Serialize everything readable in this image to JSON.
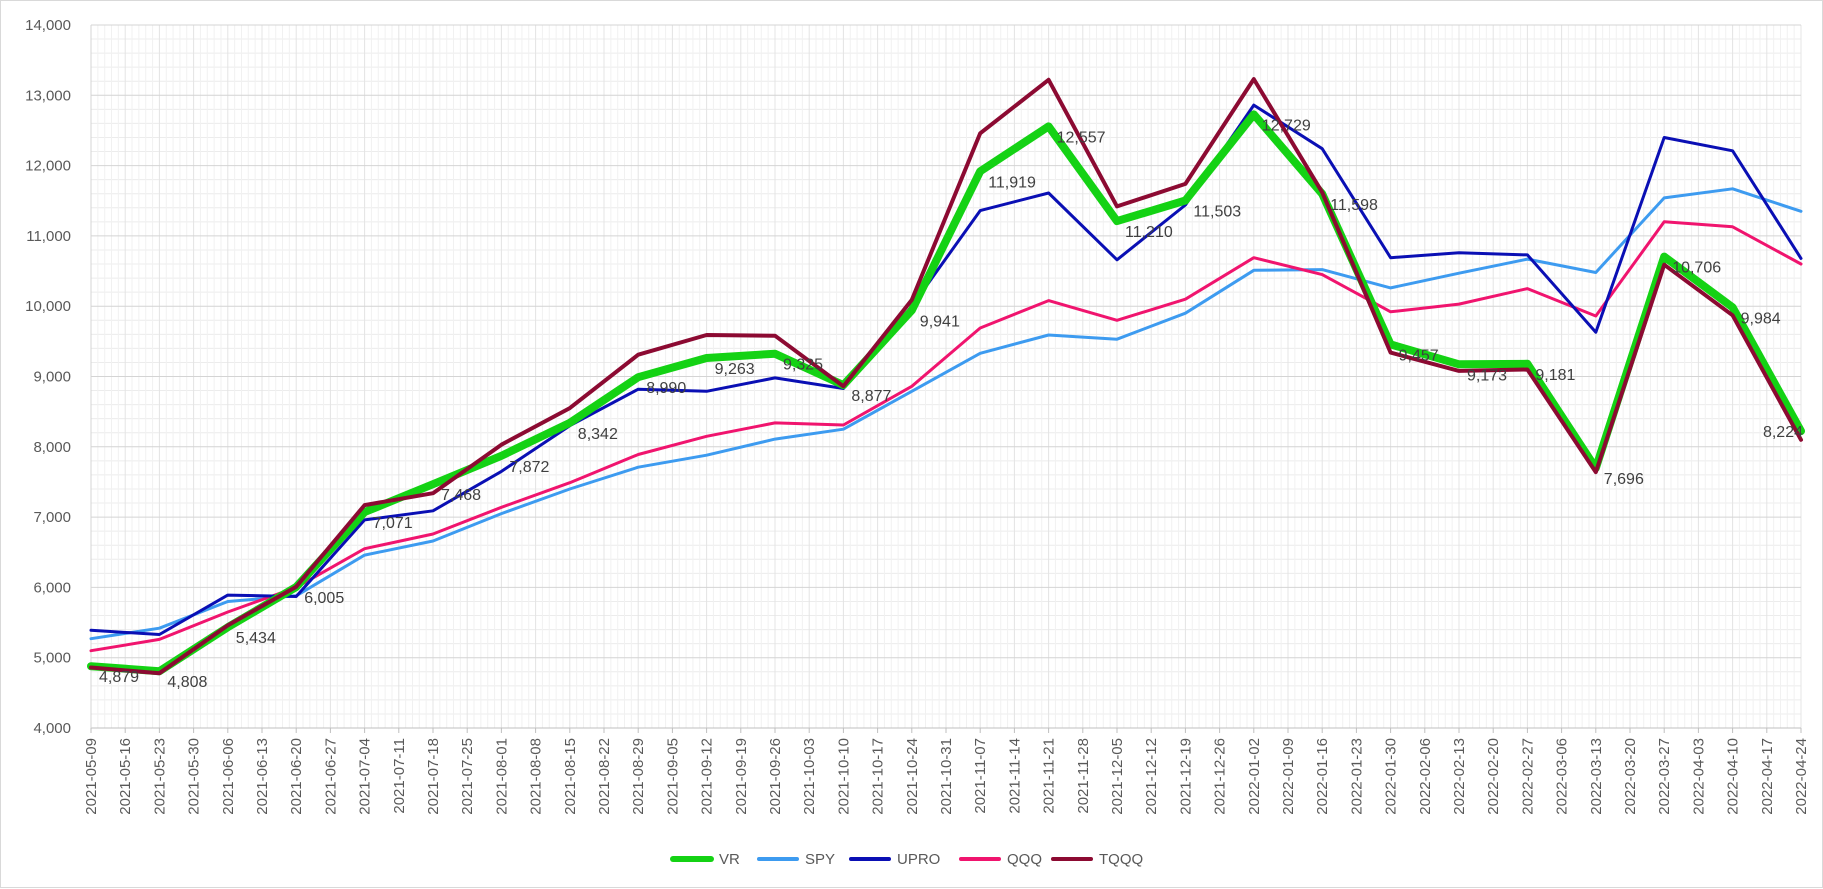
{
  "chart_data": {
    "type": "line",
    "title": "",
    "xlabel": "",
    "ylabel": "",
    "ylim": [
      4000,
      14000
    ],
    "yticks": [
      "4,000",
      "5,000",
      "6,000",
      "7,000",
      "8,000",
      "9,000",
      "10,000",
      "11,000",
      "12,000",
      "13,000",
      "14,000"
    ],
    "grid": true,
    "legend_position": "bottom",
    "categories": [
      "2021-05-09",
      "2021-05-16",
      "2021-05-23",
      "2021-05-30",
      "2021-06-06",
      "2021-06-13",
      "2021-06-20",
      "2021-06-27",
      "2021-07-04",
      "2021-07-11",
      "2021-07-18",
      "2021-07-25",
      "2021-08-01",
      "2021-08-08",
      "2021-08-15",
      "2021-08-22",
      "2021-08-29",
      "2021-09-05",
      "2021-09-12",
      "2021-09-19",
      "2021-09-26",
      "2021-10-03",
      "2021-10-10",
      "2021-10-17",
      "2021-10-24",
      "2021-10-31",
      "2021-11-07",
      "2021-11-14",
      "2021-11-21",
      "2021-11-28",
      "2021-12-05",
      "2021-12-12",
      "2021-12-19",
      "2021-12-26",
      "2022-01-02",
      "2022-01-09",
      "2022-01-16",
      "2022-01-23",
      "2022-01-30",
      "2022-02-06",
      "2022-02-13",
      "2022-02-20",
      "2022-02-27",
      "2022-03-06",
      "2022-03-13",
      "2022-03-20",
      "2022-03-27",
      "2022-04-03",
      "2022-04-10",
      "2022-04-17",
      "2022-04-24"
    ],
    "series": [
      {
        "name": "SPY",
        "color": "#3d9bf0",
        "width": 3,
        "points": [
          [
            0,
            5270
          ],
          [
            2,
            5420
          ],
          [
            4,
            5800
          ],
          [
            6,
            5880
          ],
          [
            8,
            6460
          ],
          [
            10,
            6660
          ],
          [
            12,
            7050
          ],
          [
            14,
            7400
          ],
          [
            16,
            7710
          ],
          [
            18,
            7880
          ],
          [
            20,
            8110
          ],
          [
            22,
            8250
          ],
          [
            24,
            8790
          ],
          [
            26,
            9330
          ],
          [
            28,
            9590
          ],
          [
            30,
            9530
          ],
          [
            32,
            9900
          ],
          [
            34,
            10510
          ],
          [
            36,
            10520
          ],
          [
            38,
            10260
          ],
          [
            40,
            10470
          ],
          [
            42,
            10670
          ],
          [
            44,
            10480
          ],
          [
            46,
            11540
          ],
          [
            48,
            11670
          ],
          [
            50,
            11350
          ]
        ]
      },
      {
        "name": "QQQ",
        "color": "#f0146e",
        "width": 3,
        "points": [
          [
            0,
            5100
          ],
          [
            2,
            5260
          ],
          [
            4,
            5650
          ],
          [
            6,
            6000
          ],
          [
            8,
            6550
          ],
          [
            10,
            6760
          ],
          [
            12,
            7140
          ],
          [
            14,
            7490
          ],
          [
            16,
            7890
          ],
          [
            18,
            8150
          ],
          [
            20,
            8340
          ],
          [
            22,
            8310
          ],
          [
            24,
            8860
          ],
          [
            26,
            9690
          ],
          [
            28,
            10080
          ],
          [
            30,
            9800
          ],
          [
            32,
            10100
          ],
          [
            34,
            10690
          ],
          [
            36,
            10450
          ],
          [
            38,
            9920
          ],
          [
            40,
            10030
          ],
          [
            42,
            10250
          ],
          [
            44,
            9860
          ],
          [
            46,
            11200
          ],
          [
            48,
            11130
          ],
          [
            50,
            10600
          ]
        ]
      },
      {
        "name": "UPRO",
        "color": "#0a0fb4",
        "width": 3,
        "points": [
          [
            0,
            5390
          ],
          [
            2,
            5330
          ],
          [
            4,
            5890
          ],
          [
            6,
            5870
          ],
          [
            8,
            6960
          ],
          [
            10,
            7090
          ],
          [
            12,
            7650
          ],
          [
            14,
            8300
          ],
          [
            16,
            8820
          ],
          [
            18,
            8790
          ],
          [
            20,
            8980
          ],
          [
            22,
            8830
          ],
          [
            24,
            10000
          ],
          [
            26,
            11360
          ],
          [
            28,
            11610
          ],
          [
            30,
            10660
          ],
          [
            32,
            11440
          ],
          [
            34,
            12860
          ],
          [
            36,
            12240
          ],
          [
            38,
            10690
          ],
          [
            40,
            10760
          ],
          [
            42,
            10730
          ],
          [
            44,
            9630
          ],
          [
            46,
            12400
          ],
          [
            48,
            12210
          ],
          [
            50,
            10680
          ]
        ]
      },
      {
        "name": "VR",
        "color": "#14d214",
        "width": 8,
        "points": [
          [
            0,
            4879
          ],
          [
            2,
            4808
          ],
          [
            4,
            5434
          ],
          [
            6,
            6005
          ],
          [
            8,
            7071
          ],
          [
            10,
            7468
          ],
          [
            12,
            7872
          ],
          [
            14,
            8342
          ],
          [
            16,
            8990
          ],
          [
            18,
            9263
          ],
          [
            20,
            9325
          ],
          [
            22,
            8877
          ],
          [
            24,
            9941
          ],
          [
            26,
            11919
          ],
          [
            28,
            12557
          ],
          [
            30,
            11210
          ],
          [
            32,
            11503
          ],
          [
            34,
            12729
          ],
          [
            36,
            11598
          ],
          [
            38,
            9457
          ],
          [
            40,
            9173
          ],
          [
            42,
            9181
          ],
          [
            44,
            7696
          ],
          [
            46,
            10706
          ],
          [
            48,
            9984
          ],
          [
            50,
            8224
          ]
        ]
      },
      {
        "name": "TQQQ",
        "color": "#8c0a32",
        "width": 4,
        "points": [
          [
            0,
            4860
          ],
          [
            2,
            4780
          ],
          [
            4,
            5460
          ],
          [
            6,
            6010
          ],
          [
            8,
            7170
          ],
          [
            10,
            7340
          ],
          [
            12,
            8030
          ],
          [
            14,
            8550
          ],
          [
            16,
            9310
          ],
          [
            18,
            9590
          ],
          [
            20,
            9580
          ],
          [
            22,
            8860
          ],
          [
            24,
            10090
          ],
          [
            26,
            12460
          ],
          [
            28,
            13220
          ],
          [
            30,
            11420
          ],
          [
            32,
            11740
          ],
          [
            34,
            13230
          ],
          [
            36,
            11620
          ],
          [
            38,
            9340
          ],
          [
            40,
            9080
          ],
          [
            42,
            9100
          ],
          [
            44,
            7640
          ],
          [
            46,
            10590
          ],
          [
            48,
            9870
          ],
          [
            50,
            8100
          ]
        ]
      }
    ],
    "data_labels": [
      {
        "i": 0,
        "value": 4879,
        "text": "4,879"
      },
      {
        "i": 2,
        "value": 4808,
        "text": "4,808"
      },
      {
        "i": 4,
        "value": 5434,
        "text": "5,434"
      },
      {
        "i": 6,
        "value": 6005,
        "text": "6,005"
      },
      {
        "i": 8,
        "value": 7071,
        "text": "7,071"
      },
      {
        "i": 10,
        "value": 7468,
        "text": "7,468"
      },
      {
        "i": 12,
        "value": 7872,
        "text": "7,872"
      },
      {
        "i": 14,
        "value": 8342,
        "text": "8,342"
      },
      {
        "i": 16,
        "value": 8990,
        "text": "8,990"
      },
      {
        "i": 18,
        "value": 9263,
        "text": "9,263"
      },
      {
        "i": 20,
        "value": 9325,
        "text": "9,325"
      },
      {
        "i": 22,
        "value": 8877,
        "text": "8,877"
      },
      {
        "i": 24,
        "value": 9941,
        "text": "9,941"
      },
      {
        "i": 26,
        "value": 11919,
        "text": "11,919"
      },
      {
        "i": 28,
        "value": 12557,
        "text": "12,557"
      },
      {
        "i": 30,
        "value": 11210,
        "text": "11,210"
      },
      {
        "i": 32,
        "value": 11503,
        "text": "11,503"
      },
      {
        "i": 34,
        "value": 12729,
        "text": "12,729"
      },
      {
        "i": 36,
        "value": 11598,
        "text": "11,598"
      },
      {
        "i": 38,
        "value": 9457,
        "text": "9,457"
      },
      {
        "i": 40,
        "value": 9173,
        "text": "9,173"
      },
      {
        "i": 42,
        "value": 9181,
        "text": "9,181"
      },
      {
        "i": 44,
        "value": 7696,
        "text": "7,696"
      },
      {
        "i": 46,
        "value": 10706,
        "text": "10,706"
      },
      {
        "i": 48,
        "value": 9984,
        "text": "9,984"
      },
      {
        "i": 50,
        "value": 8224,
        "text": "8,224"
      }
    ],
    "legend": [
      "VR",
      "SPY",
      "UPRO",
      "QQQ",
      "TQQQ"
    ]
  }
}
